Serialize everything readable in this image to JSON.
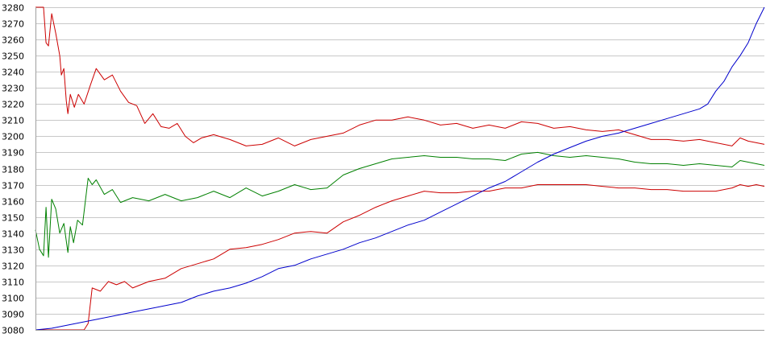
{
  "chart_data": {
    "type": "line",
    "title": "",
    "xlabel": "",
    "ylabel": "",
    "ylim": [
      3080,
      3280
    ],
    "grid": true,
    "yticks": [
      3080,
      3090,
      3100,
      3110,
      3120,
      3130,
      3140,
      3150,
      3160,
      3170,
      3180,
      3190,
      3200,
      3210,
      3220,
      3230,
      3240,
      3250,
      3260,
      3270,
      3280
    ],
    "xrange": [
      0,
      90
    ],
    "series": [
      {
        "color": "#cc0000",
        "x": [
          0,
          1,
          1.3,
          1.6,
          2,
          2.5,
          3,
          3.2,
          3.5,
          3.8,
          4,
          4.3,
          4.8,
          5.3,
          6,
          6.8,
          7.5,
          8.5,
          9.5,
          10.5,
          11.5,
          12.5,
          13.5,
          14.5,
          15.5,
          16.5,
          17.5,
          18.5,
          19.5,
          20.5,
          22,
          24,
          26,
          28,
          30,
          32,
          34,
          36,
          38,
          40,
          42,
          44,
          46,
          48,
          50,
          52,
          54,
          56,
          58,
          60,
          62,
          64,
          66,
          68,
          70,
          72,
          74,
          76,
          78,
          80,
          82,
          84,
          86,
          87,
          88,
          89,
          90
        ],
        "values": [
          3280,
          3280,
          3258,
          3256,
          3276,
          3264,
          3250,
          3238,
          3242,
          3222,
          3214,
          3226,
          3218,
          3226,
          3220,
          3232,
          3242,
          3235,
          3238,
          3228,
          3221,
          3219,
          3208,
          3214,
          3206,
          3205,
          3208,
          3200,
          3196,
          3199,
          3201,
          3198,
          3194,
          3195,
          3199,
          3194,
          3198,
          3200,
          3202,
          3207,
          3210,
          3210,
          3212,
          3210,
          3207,
          3208,
          3205,
          3207,
          3205,
          3209,
          3208,
          3205,
          3206,
          3204,
          3203,
          3204,
          3201,
          3198,
          3198,
          3197,
          3198,
          3196,
          3194,
          3199,
          3197,
          3196,
          3195
        ]
      },
      {
        "color": "#008000",
        "x": [
          0,
          0.5,
          1,
          1.3,
          1.6,
          2,
          2.5,
          3,
          3.5,
          4,
          4.3,
          4.7,
          5.2,
          5.8,
          6.5,
          7,
          7.5,
          8.5,
          9.5,
          10.5,
          12,
          14,
          16,
          18,
          20,
          22,
          24,
          26,
          28,
          30,
          32,
          34,
          36,
          38,
          40,
          42,
          44,
          46,
          48,
          50,
          52,
          54,
          56,
          58,
          60,
          62,
          64,
          66,
          68,
          70,
          72,
          74,
          76,
          78,
          80,
          82,
          84,
          86,
          87,
          88,
          89,
          90
        ],
        "values": [
          3142,
          3130,
          3126,
          3156,
          3125,
          3161,
          3155,
          3140,
          3146,
          3128,
          3144,
          3134,
          3148,
          3145,
          3174,
          3170,
          3173,
          3164,
          3167,
          3159,
          3162,
          3160,
          3164,
          3160,
          3162,
          3166,
          3162,
          3168,
          3163,
          3166,
          3170,
          3167,
          3168,
          3176,
          3180,
          3183,
          3186,
          3187,
          3188,
          3187,
          3187,
          3186,
          3186,
          3185,
          3189,
          3190,
          3188,
          3187,
          3188,
          3187,
          3186,
          3184,
          3183,
          3183,
          3182,
          3183,
          3182,
          3181,
          3185,
          3184,
          3183,
          3182
        ]
      },
      {
        "color": "#cc0000",
        "x": [
          0,
          4,
          6,
          6.5,
          7,
          8,
          9,
          10,
          11,
          12,
          14,
          16,
          18,
          20,
          22,
          24,
          26,
          28,
          30,
          32,
          34,
          36,
          38,
          40,
          42,
          44,
          46,
          48,
          50,
          52,
          54,
          56,
          58,
          60,
          62,
          64,
          66,
          68,
          70,
          72,
          74,
          76,
          78,
          80,
          82,
          84,
          86,
          87,
          88,
          89,
          90
        ],
        "values": [
          3080,
          3080,
          3080,
          3084,
          3106,
          3104,
          3110,
          3108,
          3110,
          3106,
          3110,
          3112,
          3118,
          3121,
          3124,
          3130,
          3131,
          3133,
          3136,
          3140,
          3141,
          3140,
          3147,
          3151,
          3156,
          3160,
          3163,
          3166,
          3165,
          3165,
          3166,
          3166,
          3168,
          3168,
          3170,
          3170,
          3170,
          3170,
          3169,
          3168,
          3168,
          3167,
          3167,
          3166,
          3166,
          3166,
          3168,
          3170,
          3169,
          3170,
          3169
        ]
      },
      {
        "color": "#0000cc",
        "x": [
          0,
          2,
          4,
          6,
          8,
          10,
          12,
          14,
          16,
          18,
          20,
          22,
          24,
          26,
          28,
          30,
          32,
          34,
          36,
          38,
          40,
          42,
          44,
          46,
          48,
          50,
          52,
          54,
          56,
          58,
          60,
          62,
          64,
          66,
          68,
          70,
          72,
          74,
          76,
          78,
          80,
          82,
          83,
          84,
          85,
          86,
          87,
          88,
          89,
          90
        ],
        "values": [
          3080,
          3081,
          3083,
          3085,
          3087,
          3089,
          3091,
          3093,
          3095,
          3097,
          3101,
          3104,
          3106,
          3109,
          3113,
          3118,
          3120,
          3124,
          3127,
          3130,
          3134,
          3137,
          3141,
          3145,
          3148,
          3153,
          3158,
          3163,
          3168,
          3172,
          3178,
          3184,
          3189,
          3193,
          3197,
          3200,
          3202,
          3205,
          3208,
          3211,
          3214,
          3217,
          3220,
          3228,
          3234,
          3243,
          3250,
          3258,
          3270,
          3280
        ]
      }
    ]
  }
}
